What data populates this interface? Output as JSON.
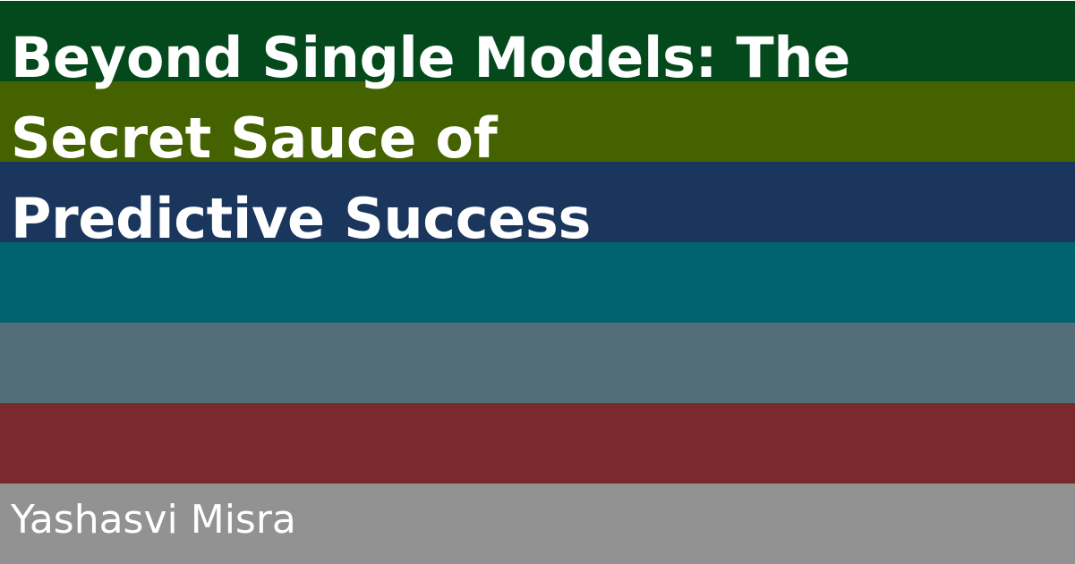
{
  "card": {
    "title_lines": [
      "Beyond Single Models: The",
      "Secret Sauce of",
      "Predictive Success"
    ],
    "author": "Yashasvi Misra"
  },
  "colors": {
    "bands": [
      "#03491c",
      "#456200",
      "#1b365c",
      "#00636e",
      "#546e79",
      "#7a2a2f",
      "#929292"
    ],
    "text": "#ffffff"
  }
}
